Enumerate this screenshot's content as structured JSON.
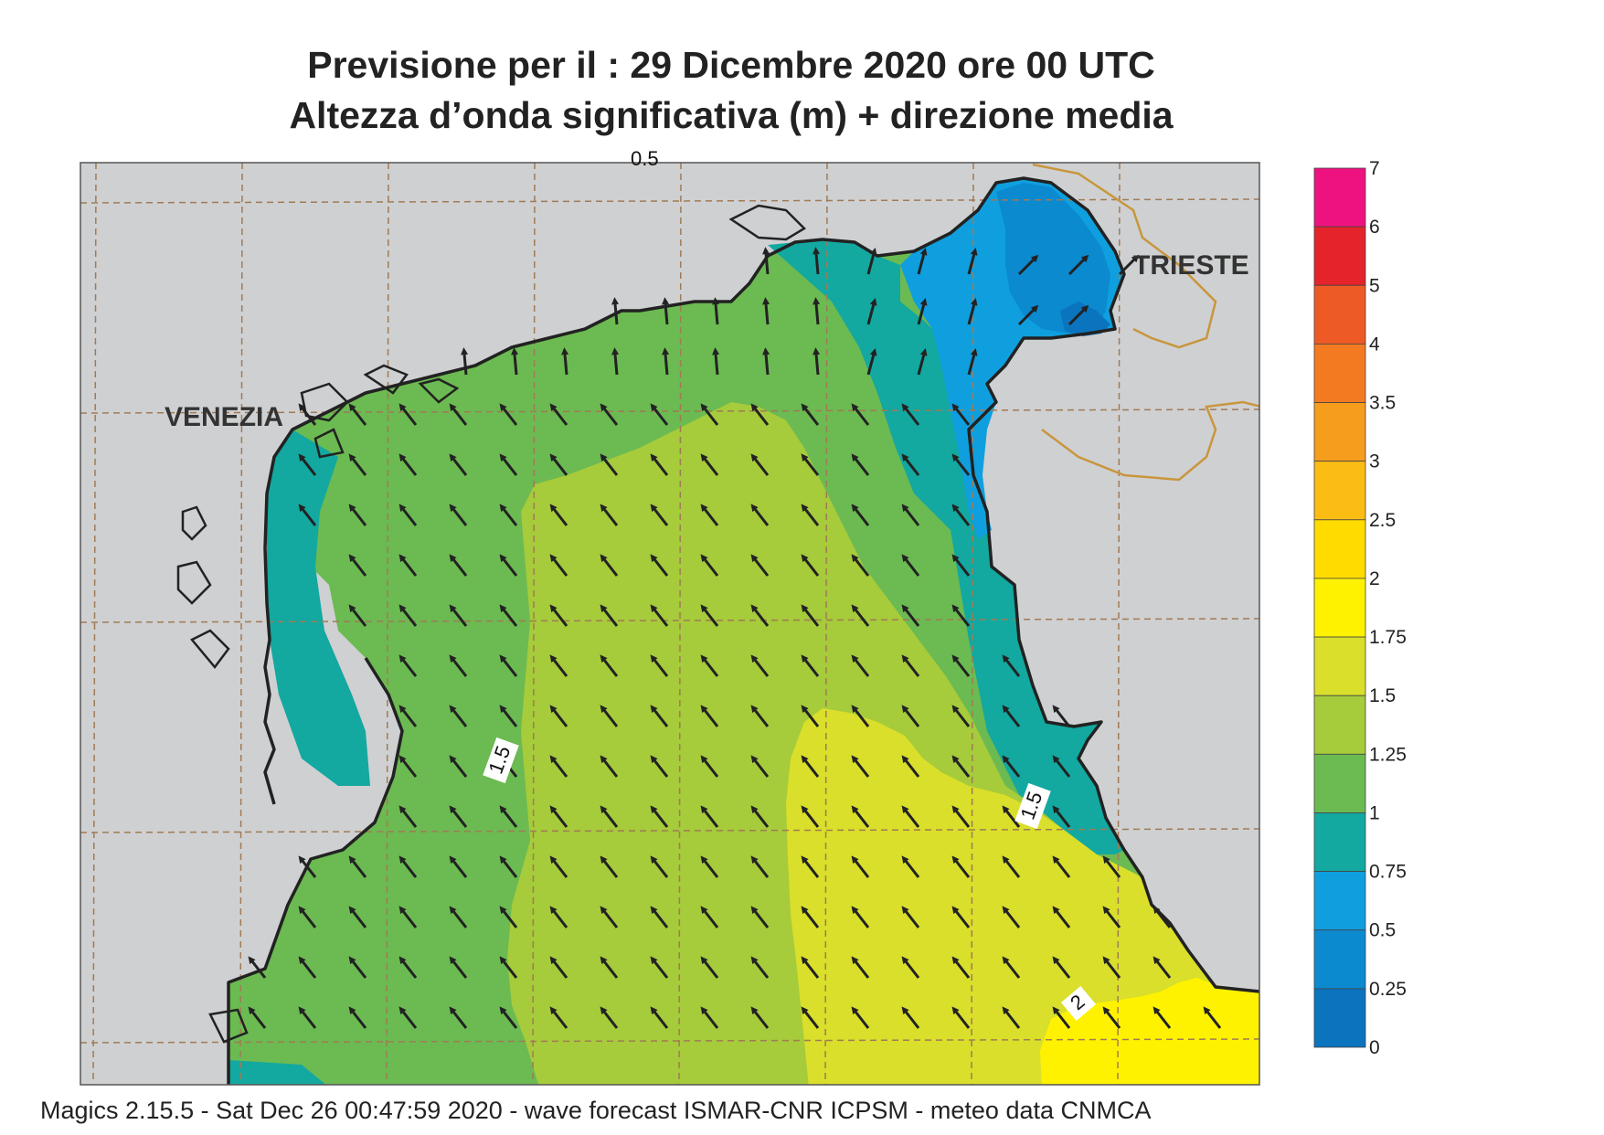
{
  "title": {
    "line1": "Previsione per il  :  29 Dicembre  2020   ore 00 UTC",
    "line2": "Altezza d’onda significativa (m) + direzione media"
  },
  "map": {
    "cities": [
      {
        "name": "VENEZIA"
      },
      {
        "name": "TRIESTE"
      }
    ],
    "contour_labels": [
      "1.5",
      "1.5",
      "2",
      "0.5"
    ],
    "colors": {
      "land": "#cfd0d2",
      "sea_bg": "#6dbb53",
      "coast": "#222222",
      "border": "#c8963c",
      "grid": "#a07b55",
      "arrow": "#222222"
    },
    "mean_direction": "north-west"
  },
  "legend": {
    "levels": [
      {
        "value": "7",
        "color": "#ee1280"
      },
      {
        "value": "6",
        "color": "#e4232b"
      },
      {
        "value": "5",
        "color": "#ee5a26"
      },
      {
        "value": "4",
        "color": "#f47a22"
      },
      {
        "value": "3.5",
        "color": "#f79d1d"
      },
      {
        "value": "3",
        "color": "#fbbd14"
      },
      {
        "value": "2.5",
        "color": "#ffdb00"
      },
      {
        "value": "2",
        "color": "#fff200"
      },
      {
        "value": "1.75",
        "color": "#d9df2a"
      },
      {
        "value": "1.5",
        "color": "#a6cb3b"
      },
      {
        "value": "1.25",
        "color": "#6cba52"
      },
      {
        "value": "1",
        "color": "#13a8a0"
      },
      {
        "value": "0.75",
        "color": "#0f9fdf"
      },
      {
        "value": "0.5",
        "color": "#0b8ad0"
      },
      {
        "value": "0.25",
        "color": "#0a74bf"
      },
      {
        "value": "0",
        "color": "#0b5fab"
      }
    ]
  },
  "footer": "Magics 2.15.5 - Sat Dec 26 00:47:59 2020 - wave forecast  ISMAR-CNR  ICPSM - meteo data   CNMCA"
}
